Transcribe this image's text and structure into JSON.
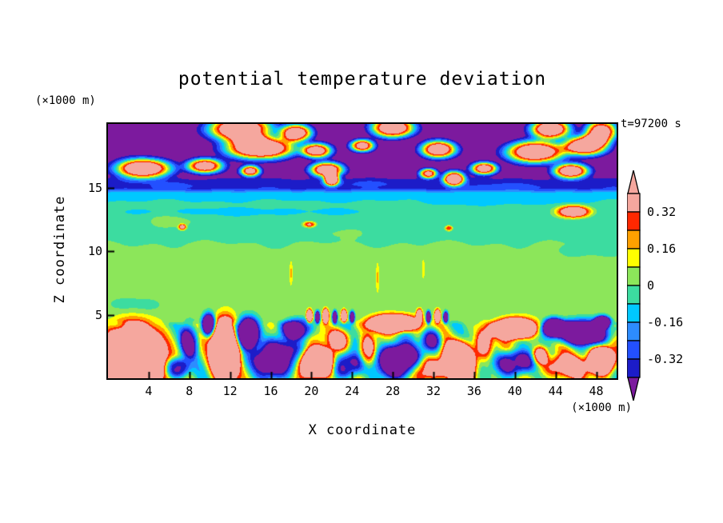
{
  "title": "potential temperature deviation",
  "time_label": "t=97200 s",
  "x_axis": {
    "label": "X coordinate",
    "units": "(×1000 m)",
    "ticks": [
      4,
      8,
      12,
      16,
      20,
      24,
      28,
      32,
      36,
      40,
      44,
      48
    ]
  },
  "z_axis": {
    "label": "Z coordinate",
    "units": "(×1000 m)",
    "ticks": [
      5,
      10,
      15
    ]
  },
  "colorbar": {
    "arrow_top_color": "#f5a79e",
    "arrow_bottom_color": "#7c1a9e",
    "segment_colors_top_to_bottom": [
      "#f5a79e",
      "#ff2800",
      "#ffa000",
      "#ffff00",
      "#8ce65a",
      "#3cdca0",
      "#00c8ff",
      "#2d8cff",
      "#2350ff",
      "#1c1cc8"
    ],
    "labels": [
      {
        "text": "0.32",
        "boundary": 1
      },
      {
        "text": "0.16",
        "boundary": 3
      },
      {
        "text": "0",
        "boundary": 5
      },
      {
        "text": "-0.16",
        "boundary": 7
      },
      {
        "text": "-0.32",
        "boundary": 9
      }
    ]
  },
  "chart_data": {
    "type": "heatmap",
    "subtype": "filled_contour",
    "title": "potential temperature deviation",
    "xlabel": "X coordinate (×1000 m)",
    "ylabel": "Z coordinate (×1000 m)",
    "time_annotation": "t=97200 s",
    "x_range": [
      0,
      50
    ],
    "z_range": [
      0,
      20
    ],
    "x_ticks": [
      4,
      8,
      12,
      16,
      20,
      24,
      28,
      32,
      36,
      40,
      44,
      48
    ],
    "z_ticks": [
      5,
      10,
      15
    ],
    "contour_interval": 0.08,
    "levels": [
      -0.4,
      -0.32,
      -0.24,
      -0.16,
      -0.08,
      0,
      0.08,
      0.16,
      0.24,
      0.32,
      0.4
    ],
    "under_color": "#7c1a9e",
    "over_color": "#f5a79e",
    "colors": [
      "#1c1cc8",
      "#2350ff",
      "#2d8cff",
      "#00c8ff",
      "#3cdca0",
      "#8ce65a",
      "#ffff00",
      "#ffa000",
      "#ff2800",
      "#f5a79e"
    ],
    "field": {
      "description": "Vertical cross-section of potential temperature deviation: strongly negative (purple) layer above z=16 km with warm pink gravity-wave crests, dark-blue stable stripe near z=15, cyan then teal layers between z=11 and 14.5, weakly positive light-green layer z=5-10.5, over a turbulent boundary layer (z<5) of alternating warm (pink/red/orange/yellow) plumes and cold (blue/dark-blue/purple) downdrafts.",
      "base_profile": [
        [
          0,
          0.05
        ],
        [
          4.6,
          0.05
        ],
        [
          5.2,
          0.04
        ],
        [
          9.8,
          0.04
        ],
        [
          10.6,
          0.0
        ],
        [
          11.1,
          -0.04
        ],
        [
          13.6,
          -0.04
        ],
        [
          14.1,
          -0.1
        ],
        [
          14.6,
          -0.14
        ],
        [
          14.9,
          -0.33
        ],
        [
          15.6,
          -0.38
        ],
        [
          15.95,
          -0.47
        ],
        [
          20,
          -0.5
        ]
      ],
      "waves": [
        [
          0.012,
          0.55,
          0.8,
          0,
          0,
          20
        ],
        [
          0.01,
          1.3,
          -0.5,
          1,
          0,
          20
        ],
        [
          0.12,
          1.1,
          0.9,
          0.5,
          0,
          4.6
        ],
        [
          0.08,
          2.3,
          1.4,
          2,
          0,
          4.6
        ]
      ],
      "blobs": [
        [
          13,
          19.6,
          3.2,
          1,
          1.05
        ],
        [
          18.5,
          19.3,
          1.6,
          0.7,
          0.95
        ],
        [
          28,
          19.7,
          2.2,
          0.8,
          1
        ],
        [
          43.5,
          19.6,
          2,
          0.8,
          1
        ],
        [
          48.5,
          19.4,
          1.6,
          0.9,
          0.95
        ],
        [
          15,
          18.1,
          3.5,
          0.9,
          1.05
        ],
        [
          20.5,
          17.9,
          1.5,
          0.6,
          0.9
        ],
        [
          25,
          18.3,
          1.2,
          0.5,
          0.9
        ],
        [
          32.5,
          18,
          1.8,
          0.7,
          0.95
        ],
        [
          42,
          17.8,
          3,
          0.9,
          1
        ],
        [
          47,
          18.3,
          2.2,
          0.8,
          1
        ],
        [
          3.5,
          16.5,
          2.8,
          0.8,
          1
        ],
        [
          9.5,
          16.7,
          1.8,
          0.6,
          0.92
        ],
        [
          14,
          16.3,
          1,
          0.45,
          0.88
        ],
        [
          21.5,
          16.4,
          1.7,
          0.6,
          0.95
        ],
        [
          31.5,
          16.1,
          0.9,
          0.4,
          0.85
        ],
        [
          37,
          16.5,
          1.3,
          0.5,
          0.9
        ],
        [
          45.5,
          16.3,
          1.8,
          0.6,
          0.95
        ],
        [
          22,
          15.6,
          0.8,
          0.5,
          0.9
        ],
        [
          34,
          15.7,
          1.1,
          0.6,
          0.95
        ],
        [
          7,
          15.2,
          3,
          0.3,
          0.05
        ],
        [
          25,
          15.35,
          5,
          0.25,
          0.04
        ],
        [
          40,
          15.1,
          4,
          0.3,
          0.05
        ],
        [
          7.3,
          11.9,
          0.4,
          0.25,
          0.4
        ],
        [
          19.8,
          12.1,
          0.6,
          0.22,
          0.35
        ],
        [
          33.5,
          11.8,
          0.35,
          0.2,
          0.33
        ],
        [
          45.8,
          13.1,
          1.7,
          0.5,
          0.55
        ],
        [
          14,
          13.1,
          14,
          0.35,
          -0.06
        ],
        [
          38,
          13.8,
          7,
          0.3,
          -0.05
        ],
        [
          6,
          12.3,
          3,
          0.6,
          0.05
        ],
        [
          24,
          11.4,
          4,
          0.5,
          0.045
        ],
        [
          18,
          8.3,
          0.15,
          0.9,
          0.13
        ],
        [
          26.5,
          8,
          0.15,
          1.1,
          0.12
        ],
        [
          31,
          8.6,
          0.15,
          0.8,
          0.12
        ],
        [
          3,
          5.8,
          2.5,
          0.7,
          -0.07
        ],
        [
          47,
          9.9,
          3.5,
          0.6,
          -0.06
        ],
        [
          2.5,
          1.8,
          3,
          2.4,
          1.15
        ],
        [
          6.8,
          0.8,
          1.2,
          0.8,
          -0.55
        ],
        [
          8,
          3,
          0.9,
          1.4,
          -0.5
        ],
        [
          11.5,
          2.2,
          1.4,
          2.4,
          1.15
        ],
        [
          9.9,
          4.2,
          0.7,
          0.9,
          -0.85
        ],
        [
          13.8,
          3.6,
          1.2,
          1.2,
          -0.9
        ],
        [
          16.5,
          1.6,
          2.2,
          1.6,
          -0.75
        ],
        [
          18.6,
          3.9,
          1.6,
          0.8,
          -0.6
        ],
        [
          20.5,
          1.2,
          1.7,
          1.2,
          1.1
        ],
        [
          23.5,
          1,
          1.5,
          1,
          -0.6
        ],
        [
          22.8,
          3.1,
          1.1,
          0.8,
          0.45
        ],
        [
          25.5,
          2.2,
          0.8,
          1.2,
          0.4
        ],
        [
          28,
          4.3,
          2.4,
          0.7,
          1
        ],
        [
          28.5,
          1.4,
          2,
          1.4,
          -0.9
        ],
        [
          31.5,
          0.7,
          1.6,
          0.9,
          0.5
        ],
        [
          31.8,
          3,
          1,
          0.9,
          -0.55
        ],
        [
          34.5,
          1.3,
          1.6,
          1.5,
          1.15
        ],
        [
          37,
          2.8,
          0.9,
          1.3,
          0.4
        ],
        [
          40,
          3.9,
          2.1,
          0.8,
          1.05
        ],
        [
          40,
          1.2,
          1.8,
          1,
          -0.65
        ],
        [
          43.8,
          4,
          1.1,
          0.7,
          -1
        ],
        [
          46.5,
          3.6,
          3,
          1,
          -0.85
        ],
        [
          48.6,
          4.4,
          0.8,
          0.5,
          -0.95
        ],
        [
          45,
          0.9,
          2.4,
          0.9,
          0.45
        ],
        [
          48.5,
          1.4,
          1.3,
          1.1,
          1.05
        ],
        [
          42.5,
          1.8,
          0.8,
          0.7,
          0.5
        ],
        [
          19.8,
          4.9,
          0.3,
          0.5,
          0.85
        ],
        [
          20.6,
          4.8,
          0.25,
          0.5,
          -0.8
        ],
        [
          21.4,
          4.9,
          0.3,
          0.55,
          0.9
        ],
        [
          22.3,
          4.8,
          0.25,
          0.5,
          -0.85
        ],
        [
          23.2,
          4.9,
          0.3,
          0.5,
          0.8
        ],
        [
          24,
          4.8,
          0.25,
          0.45,
          -0.8
        ],
        [
          30.6,
          4.9,
          0.3,
          0.5,
          0.85
        ],
        [
          31.5,
          4.8,
          0.25,
          0.5,
          -0.8
        ],
        [
          32.4,
          4.9,
          0.3,
          0.5,
          0.85
        ],
        [
          33.2,
          4.8,
          0.25,
          0.45,
          -0.75
        ]
      ]
    }
  }
}
